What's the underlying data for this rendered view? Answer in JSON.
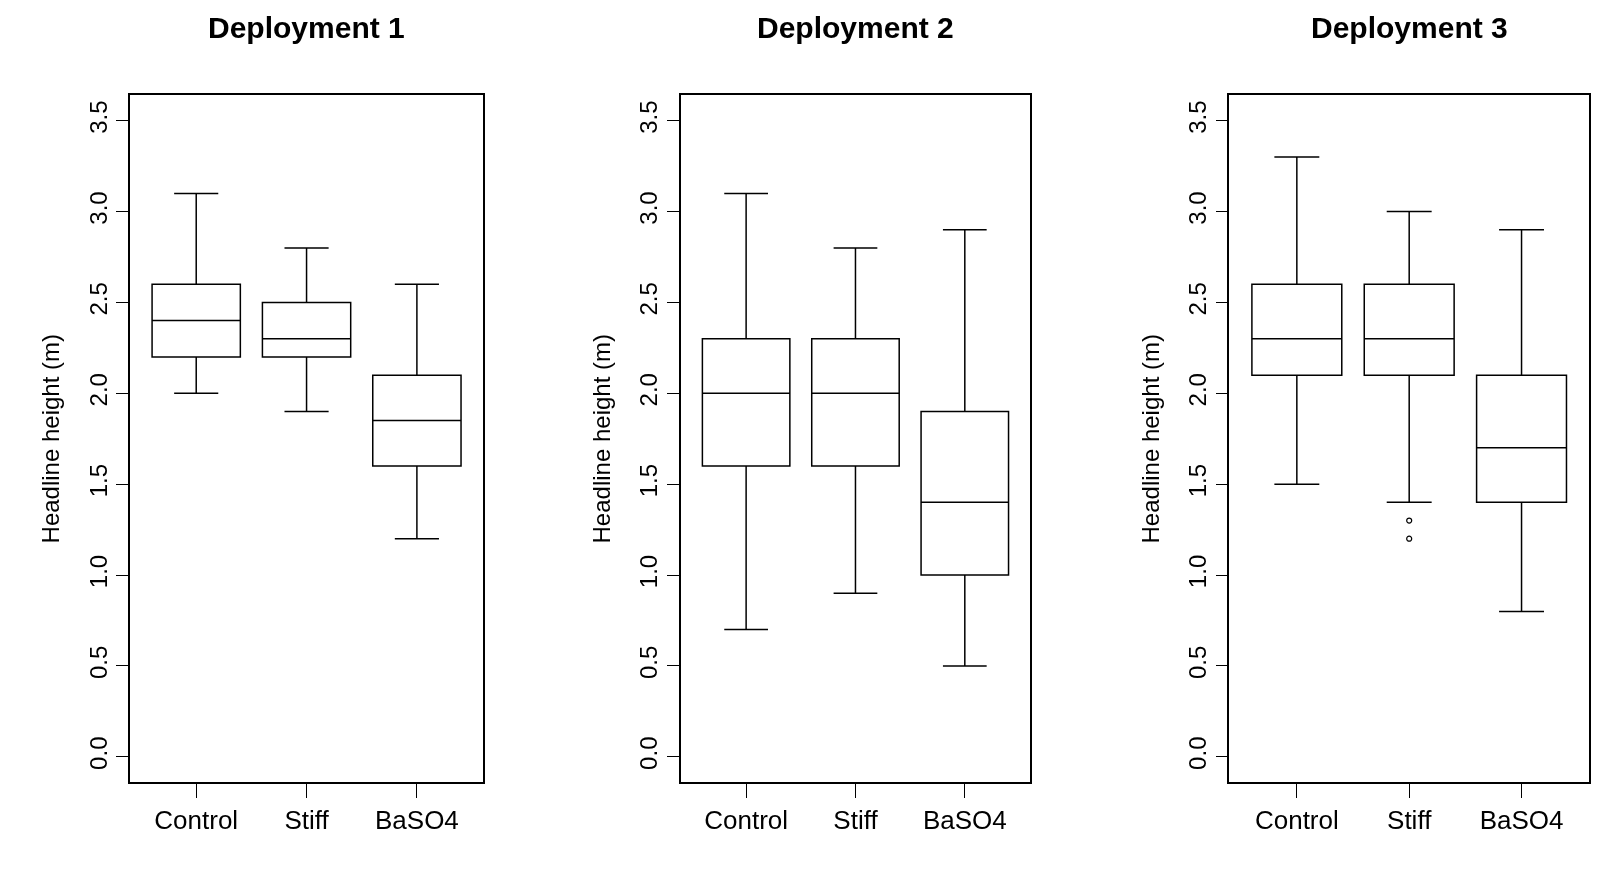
{
  "chart_data": [
    {
      "type": "box",
      "title": "Deployment 1",
      "ylabel": "Headline height (m)",
      "categories": [
        "Control",
        "Stiff",
        "BaSO4"
      ],
      "ylim": [
        -0.14,
        3.64
      ],
      "yticks": [
        {
          "value": 0,
          "label": "0.0"
        },
        {
          "value": 0.5,
          "label": "0.5"
        },
        {
          "value": 1,
          "label": "1.0"
        },
        {
          "value": 1.5,
          "label": "1.5"
        },
        {
          "value": 2,
          "label": "2.0"
        },
        {
          "value": 2.5,
          "label": "2.5"
        },
        {
          "value": 3,
          "label": "3.0"
        },
        {
          "value": 3.5,
          "label": "3.5"
        }
      ],
      "grid": false,
      "boxes": [
        {
          "low": 2.0,
          "q1": 2.2,
          "median": 2.4,
          "q3": 2.6,
          "high": 3.1
        },
        {
          "low": 1.9,
          "q1": 2.2,
          "median": 2.3,
          "q3": 2.5,
          "high": 2.8
        },
        {
          "low": 1.2,
          "q1": 1.6,
          "median": 1.85,
          "q3": 2.1,
          "high": 2.6
        }
      ]
    },
    {
      "type": "box",
      "title": "Deployment 2",
      "ylabel": "Headline height (m)",
      "categories": [
        "Control",
        "Stiff",
        "BaSO4"
      ],
      "ylim": [
        -0.14,
        3.64
      ],
      "yticks": [
        {
          "value": 0,
          "label": "0.0"
        },
        {
          "value": 0.5,
          "label": "0.5"
        },
        {
          "value": 1,
          "label": "1.0"
        },
        {
          "value": 1.5,
          "label": "1.5"
        },
        {
          "value": 2,
          "label": "2.0"
        },
        {
          "value": 2.5,
          "label": "2.5"
        },
        {
          "value": 3,
          "label": "3.0"
        },
        {
          "value": 3.5,
          "label": "3.5"
        }
      ],
      "grid": false,
      "boxes": [
        {
          "low": 0.7,
          "q1": 1.6,
          "median": 2.0,
          "q3": 2.3,
          "high": 3.1
        },
        {
          "low": 0.9,
          "q1": 1.6,
          "median": 2.0,
          "q3": 2.3,
          "high": 2.8
        },
        {
          "low": 0.5,
          "q1": 1.0,
          "median": 1.4,
          "q3": 1.9,
          "high": 2.9
        }
      ]
    },
    {
      "type": "box",
      "title": "Deployment 3",
      "ylabel": "Headline height (m)",
      "categories": [
        "Control",
        "Stiff",
        "BaSO4"
      ],
      "ylim": [
        -0.14,
        3.64
      ],
      "yticks": [
        {
          "value": 0,
          "label": "0.0"
        },
        {
          "value": 0.5,
          "label": "0.5"
        },
        {
          "value": 1,
          "label": "1.0"
        },
        {
          "value": 1.5,
          "label": "1.5"
        },
        {
          "value": 2,
          "label": "2.0"
        },
        {
          "value": 2.5,
          "label": "2.5"
        },
        {
          "value": 3,
          "label": "3.0"
        },
        {
          "value": 3.5,
          "label": "3.5"
        }
      ],
      "grid": false,
      "boxes": [
        {
          "low": 1.5,
          "q1": 2.1,
          "median": 2.3,
          "q3": 2.6,
          "high": 3.3
        },
        {
          "low": 1.4,
          "q1": 2.1,
          "median": 2.3,
          "q3": 2.6,
          "high": 3.0,
          "outliers": [
            1.3,
            1.2
          ]
        },
        {
          "low": 0.8,
          "q1": 1.4,
          "median": 1.7,
          "q3": 2.1,
          "high": 2.9
        }
      ]
    }
  ]
}
